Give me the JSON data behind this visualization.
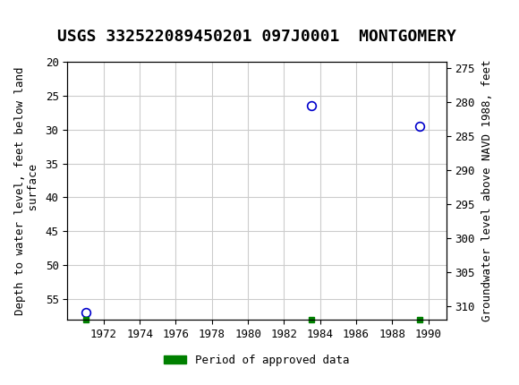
{
  "title": "USGS 332522089450201 097J0001  MONTGOMERY",
  "ylabel_left": "Depth to water level, feet below land\n surface",
  "ylabel_right": "Groundwater level above NAVD 1988, feet",
  "xlim": [
    1970,
    1991
  ],
  "ylim_left": [
    20,
    58
  ],
  "ylim_right": [
    274,
    312
  ],
  "yticks_left": [
    20,
    25,
    30,
    35,
    40,
    45,
    50,
    55
  ],
  "yticks_right": [
    275,
    280,
    285,
    290,
    295,
    300,
    305,
    310
  ],
  "xticks": [
    1972,
    1974,
    1976,
    1978,
    1980,
    1982,
    1984,
    1986,
    1988,
    1990
  ],
  "data_points": [
    {
      "x": 1971.0,
      "y_left": 57.0,
      "color": "#0000cc"
    },
    {
      "x": 1983.5,
      "y_left": 26.5,
      "color": "#0000cc"
    },
    {
      "x": 1989.5,
      "y_left": 29.5,
      "color": "#0000cc"
    }
  ],
  "approved_markers": [
    {
      "x": 1971.0
    },
    {
      "x": 1983.5
    },
    {
      "x": 1989.5
    }
  ],
  "legend_label": "Period of approved data",
  "legend_color": "#008000",
  "grid_color": "#cccccc",
  "bg_color": "#ffffff",
  "header_color": "#006666",
  "title_fontsize": 13,
  "axis_fontsize": 9,
  "tick_fontsize": 9
}
